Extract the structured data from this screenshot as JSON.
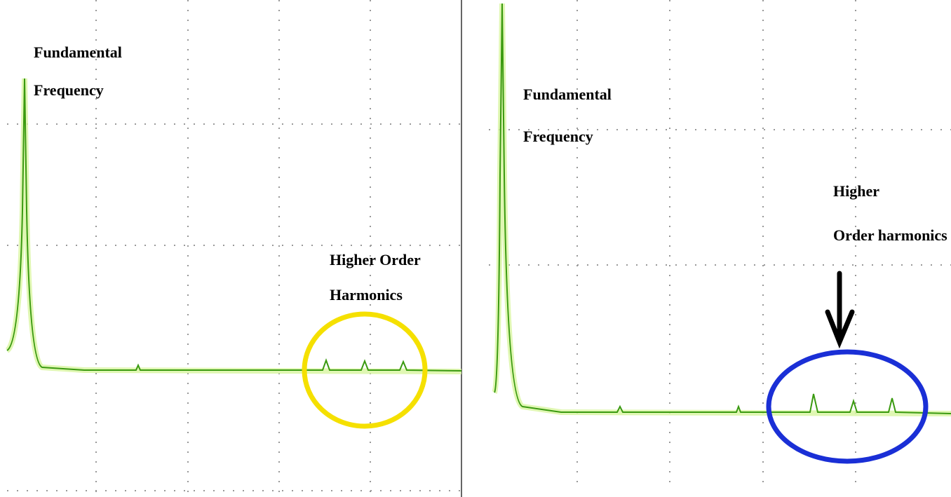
{
  "panels": [
    {
      "fundamental_label": [
        "Fundamental",
        "Frequency"
      ],
      "harmonics_label": [
        "Higher Order",
        "Harmonics"
      ]
    },
    {
      "fundamental_label": [
        "Fundamental",
        "Frequency"
      ],
      "harmonics_label": [
        "Higher",
        "Order harmonics"
      ]
    }
  ]
}
